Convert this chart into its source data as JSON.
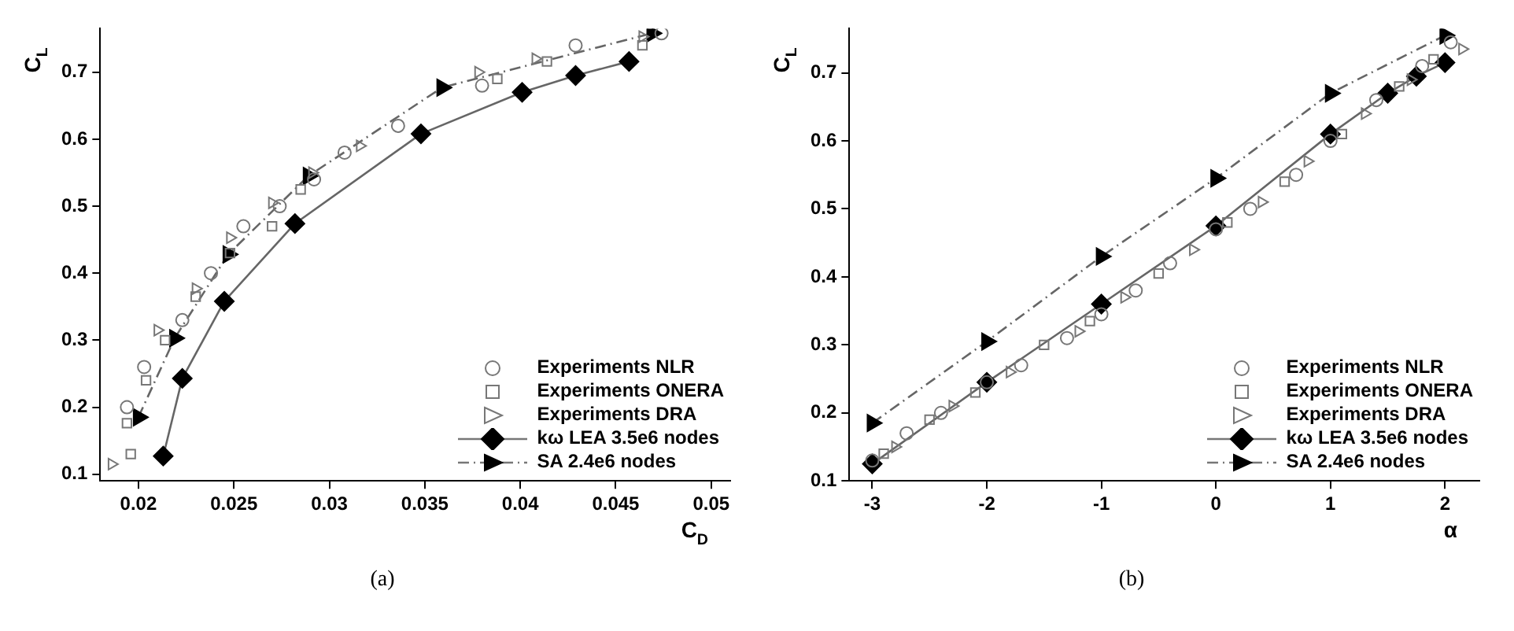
{
  "chart_data": [
    {
      "type": "line",
      "xlabel": "C$_{D}$",
      "ylabel": "C$_{L}$",
      "annotations": [
        "(a)"
      ],
      "xlim": [
        0.018,
        0.051
      ],
      "ylim": [
        0.09,
        0.765
      ],
      "xticks": [
        0.02,
        0.025,
        0.03,
        0.035,
        0.04,
        0.045,
        0.05
      ],
      "yticks": [
        0.1,
        0.2,
        0.3,
        0.4,
        0.5,
        0.6,
        0.7
      ],
      "grid": false,
      "legend": "bottom right",
      "series": [
        {
          "name": "Experiments NLR",
          "type": "scatter",
          "marker": "circle",
          "color": "#777777",
          "x": [
            0.0194,
            0.0203,
            0.0223,
            0.0238,
            0.0255,
            0.0274,
            0.0292,
            0.0308,
            0.0336,
            0.038,
            0.0429,
            0.0474
          ],
          "values": [
            0.2,
            0.26,
            0.33,
            0.4,
            0.47,
            0.5,
            0.54,
            0.58,
            0.62,
            0.68,
            0.74,
            0.758
          ]
        },
        {
          "name": "Experiments ONERA",
          "type": "scatter",
          "marker": "square",
          "color": "#777777",
          "x": [
            0.0196,
            0.0194,
            0.0204,
            0.0214,
            0.023,
            0.0248,
            0.027,
            0.0285,
            0.0388,
            0.0414,
            0.0464
          ],
          "values": [
            0.13,
            0.176,
            0.24,
            0.3,
            0.365,
            0.43,
            0.47,
            0.525,
            0.69,
            0.716,
            0.74
          ]
        },
        {
          "name": "Experiments DRA",
          "type": "scatter",
          "marker": "triangle",
          "color": "#777777",
          "x": [
            0.0186,
            0.021,
            0.023,
            0.0248,
            0.027,
            0.0291,
            0.0316,
            0.0378,
            0.0408,
            0.0464
          ],
          "values": [
            0.115,
            0.315,
            0.377,
            0.453,
            0.505,
            0.55,
            0.59,
            0.7,
            0.72,
            0.753
          ]
        },
        {
          "name": "kω LEA 3.5e6 nodes",
          "type": "line",
          "marker": "diamond",
          "line_style": "solid",
          "color": "#000000",
          "x": [
            0.0213,
            0.0223,
            0.0245,
            0.0282,
            0.0348,
            0.0401,
            0.0429,
            0.0457
          ],
          "values": [
            0.127,
            0.243,
            0.358,
            0.474,
            0.608,
            0.67,
            0.695,
            0.716
          ]
        },
        {
          "name": "SA 2.4e6 nodes",
          "type": "line",
          "marker": "triangle",
          "line_style": "dashed",
          "color": "#000000",
          "x": [
            0.02,
            0.0219,
            0.0247,
            0.0289,
            0.0359,
            0.0469
          ],
          "values": [
            0.185,
            0.303,
            0.428,
            0.545,
            0.677,
            0.758
          ]
        }
      ]
    },
    {
      "type": "line",
      "xlabel": "α",
      "ylabel": "C$_{L}$",
      "annotations": [
        "(b)"
      ],
      "xlim": [
        -3.2,
        2.3
      ],
      "ylim": [
        0.1,
        0.765
      ],
      "xticks": [
        -3,
        -2,
        -1,
        0,
        1,
        2
      ],
      "yticks": [
        0.1,
        0.2,
        0.3,
        0.4,
        0.5,
        0.6,
        0.7
      ],
      "grid": false,
      "legend": "bottom right",
      "series": [
        {
          "name": "Experiments NLR",
          "type": "scatter",
          "marker": "circle",
          "color": "#777777",
          "x": [
            -3,
            -2.7,
            -2.4,
            -2,
            -1.7,
            -1.3,
            -1,
            -0.7,
            -0.4,
            0,
            0.3,
            0.7,
            1,
            1.4,
            1.8,
            2.05
          ],
          "values": [
            0.13,
            0.17,
            0.2,
            0.245,
            0.27,
            0.31,
            0.345,
            0.38,
            0.42,
            0.47,
            0.5,
            0.55,
            0.6,
            0.66,
            0.71,
            0.745
          ]
        },
        {
          "name": "Experiments ONERA",
          "type": "scatter",
          "marker": "square",
          "color": "#777777",
          "x": [
            -2.9,
            -2.5,
            -2.1,
            -1.5,
            -1.1,
            -0.5,
            0.1,
            0.6,
            1.1,
            1.6,
            1.9
          ],
          "values": [
            0.14,
            0.19,
            0.23,
            0.3,
            0.335,
            0.405,
            0.48,
            0.54,
            0.61,
            0.68,
            0.72
          ]
        },
        {
          "name": "Experiments DRA",
          "type": "scatter",
          "marker": "triangle",
          "color": "#777777",
          "x": [
            -2.8,
            -2.3,
            -1.8,
            -1.2,
            -0.8,
            -0.2,
            0.4,
            0.8,
            1.3,
            1.7,
            2.15
          ],
          "values": [
            0.15,
            0.21,
            0.26,
            0.32,
            0.37,
            0.44,
            0.51,
            0.57,
            0.64,
            0.69,
            0.735
          ]
        },
        {
          "name": "kω LEA 3.5e6 nodes",
          "type": "line",
          "marker": "diamond",
          "line_style": "solid",
          "color": "#000000",
          "x": [
            -3,
            -2,
            -1,
            0,
            1,
            1.5,
            1.75,
            2
          ],
          "values": [
            0.125,
            0.245,
            0.36,
            0.475,
            0.61,
            0.67,
            0.695,
            0.715
          ]
        },
        {
          "name": "SA 2.4e6 nodes",
          "type": "line",
          "marker": "triangle",
          "line_style": "dashed",
          "color": "#000000",
          "x": [
            -3,
            -2,
            -1,
            0,
            1,
            2
          ],
          "values": [
            0.185,
            0.305,
            0.43,
            0.545,
            0.67,
            0.755
          ]
        }
      ]
    }
  ]
}
